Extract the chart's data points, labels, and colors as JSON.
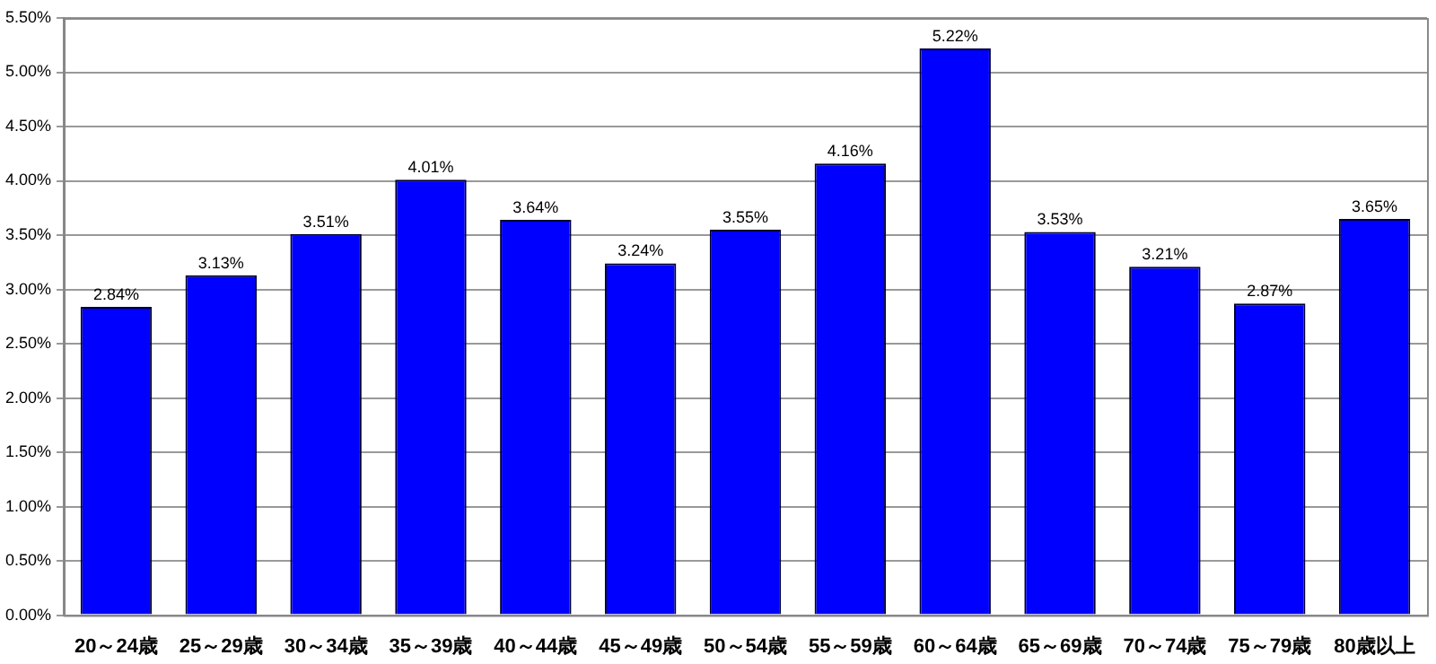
{
  "chart_data": {
    "type": "bar",
    "categories": [
      "20～24歳",
      "25～29歳",
      "30～34歳",
      "35～39歳",
      "40～44歳",
      "45～49歳",
      "50～54歳",
      "55～59歳",
      "60～64歳",
      "65～69歳",
      "70～74歳",
      "75～79歳",
      "80歳以上"
    ],
    "values": [
      2.84,
      3.13,
      3.51,
      4.01,
      3.64,
      3.24,
      3.55,
      4.16,
      5.22,
      3.53,
      3.21,
      2.87,
      3.65
    ],
    "value_labels": [
      "2.84%",
      "3.13%",
      "3.51%",
      "4.01%",
      "3.64%",
      "3.24%",
      "3.55%",
      "4.16%",
      "5.22%",
      "3.53%",
      "3.21%",
      "2.87%",
      "3.65%"
    ],
    "color": "#0000ff",
    "ylim": [
      0,
      5.5
    ],
    "yticks": [
      {
        "value": 0,
        "label": "0.00%"
      },
      {
        "value": 0.5,
        "label": "0.50%"
      },
      {
        "value": 1,
        "label": "1.00%"
      },
      {
        "value": 1.5,
        "label": "1.50%"
      },
      {
        "value": 2,
        "label": "2.00%"
      },
      {
        "value": 2.5,
        "label": "2.50%"
      },
      {
        "value": 3,
        "label": "3.00%"
      },
      {
        "value": 3.5,
        "label": "3.50%"
      },
      {
        "value": 4,
        "label": "4.00%"
      },
      {
        "value": 4.5,
        "label": "4.50%"
      },
      {
        "value": 5,
        "label": "5.00%"
      },
      {
        "value": 5.5,
        "label": "5.50%"
      }
    ],
    "grid": "y"
  }
}
